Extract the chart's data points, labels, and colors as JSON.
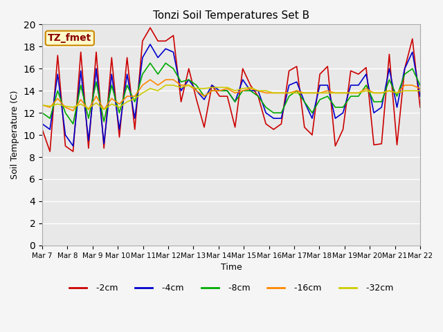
{
  "title": "Tonzi Soil Temperatures Set B",
  "xlabel": "Time",
  "ylabel": "Soil Temperature (C)",
  "ylim": [
    0,
    20
  ],
  "yticks": [
    0,
    2,
    4,
    6,
    8,
    10,
    12,
    14,
    16,
    18,
    20
  ],
  "series_colors": {
    "-2cm": "#cc0000",
    "-4cm": "#0000cc",
    "-8cm": "#00aa00",
    "-16cm": "#ff8800",
    "-32cm": "#cccc00"
  },
  "legend_label": "TZ_fmet",
  "legend_box_bg": "#ffffcc",
  "legend_box_border": "#cc8800",
  "plot_bg": "#e8e8e8",
  "fig_bg": "#f5f5f5",
  "grid_color": "#ffffff",
  "xtick_labels": [
    "Mar 7",
    "Mar 8",
    "Mar 9",
    "Mar 10",
    "Mar 11",
    "Mar 12",
    "Mar 13",
    "Mar 14",
    "Mar 15",
    "Mar 16",
    "Mar 17",
    "Mar 18",
    "Mar 19",
    "Mar 20",
    "Mar 21",
    "Mar 22"
  ],
  "series_data": {
    "-2cm": [
      10.5,
      8.5,
      17.2,
      9.0,
      8.5,
      17.5,
      8.8,
      17.5,
      8.8,
      17.0,
      9.8,
      17.0,
      10.5,
      18.5,
      19.7,
      18.5,
      18.5,
      19.0,
      13.0,
      16.0,
      13.2,
      10.7,
      14.5,
      13.5,
      13.5,
      10.7,
      16.0,
      14.5,
      13.5,
      11.0,
      10.5,
      11.0,
      15.8,
      16.2,
      10.7,
      10.0,
      15.5,
      16.2,
      9.0,
      10.5,
      15.8,
      15.5,
      16.1,
      9.1,
      9.2,
      17.3,
      9.1,
      16.0,
      18.7,
      12.5
    ],
    "-4cm": [
      11.0,
      10.5,
      15.5,
      10.0,
      9.0,
      15.8,
      9.5,
      16.0,
      9.2,
      15.5,
      10.5,
      15.5,
      11.5,
      17.0,
      18.2,
      17.0,
      17.8,
      17.5,
      14.0,
      15.0,
      14.0,
      13.2,
      14.5,
      14.0,
      14.0,
      13.0,
      15.0,
      14.0,
      14.0,
      12.0,
      11.5,
      11.5,
      14.5,
      14.8,
      13.0,
      11.5,
      14.5,
      14.5,
      11.5,
      12.0,
      14.5,
      14.5,
      15.5,
      12.0,
      12.5,
      16.0,
      12.5,
      16.0,
      17.5,
      13.5
    ],
    "-8cm": [
      12.0,
      11.5,
      14.0,
      12.0,
      11.0,
      14.5,
      11.5,
      14.8,
      11.2,
      14.5,
      12.0,
      14.5,
      13.0,
      15.5,
      16.5,
      15.5,
      16.5,
      16.0,
      14.8,
      15.0,
      14.5,
      13.5,
      14.0,
      14.0,
      14.0,
      13.0,
      14.0,
      14.0,
      13.5,
      12.5,
      12.0,
      12.0,
      13.5,
      14.0,
      13.0,
      12.0,
      13.2,
      13.5,
      12.5,
      12.5,
      13.5,
      13.5,
      14.5,
      13.0,
      13.0,
      15.0,
      13.5,
      15.5,
      16.0,
      14.5
    ],
    "-16cm": [
      12.7,
      12.5,
      13.3,
      12.5,
      12.2,
      13.2,
      12.3,
      13.5,
      12.3,
      13.3,
      12.8,
      13.5,
      13.5,
      14.5,
      15.0,
      14.5,
      15.0,
      15.0,
      14.5,
      14.5,
      14.0,
      13.5,
      14.0,
      14.0,
      14.2,
      13.8,
      14.0,
      14.2,
      14.0,
      13.8,
      13.8,
      13.8,
      13.8,
      14.0,
      13.8,
      13.8,
      13.8,
      14.0,
      13.8,
      13.8,
      13.8,
      13.8,
      14.2,
      13.8,
      13.8,
      14.0,
      13.8,
      14.5,
      14.5,
      14.2
    ],
    "-32cm": [
      12.7,
      12.6,
      12.8,
      12.6,
      12.5,
      12.8,
      12.4,
      12.9,
      12.3,
      12.8,
      12.5,
      13.0,
      13.3,
      13.8,
      14.2,
      14.0,
      14.5,
      14.5,
      14.3,
      14.5,
      14.2,
      14.2,
      14.3,
      14.3,
      14.3,
      14.0,
      14.2,
      14.3,
      14.0,
      14.0,
      13.8,
      13.8,
      13.8,
      13.8,
      13.8,
      13.8,
      13.8,
      13.8,
      13.8,
      13.8,
      13.8,
      13.8,
      14.0,
      13.8,
      13.8,
      14.0,
      13.8,
      14.0,
      14.0,
      14.0
    ]
  }
}
